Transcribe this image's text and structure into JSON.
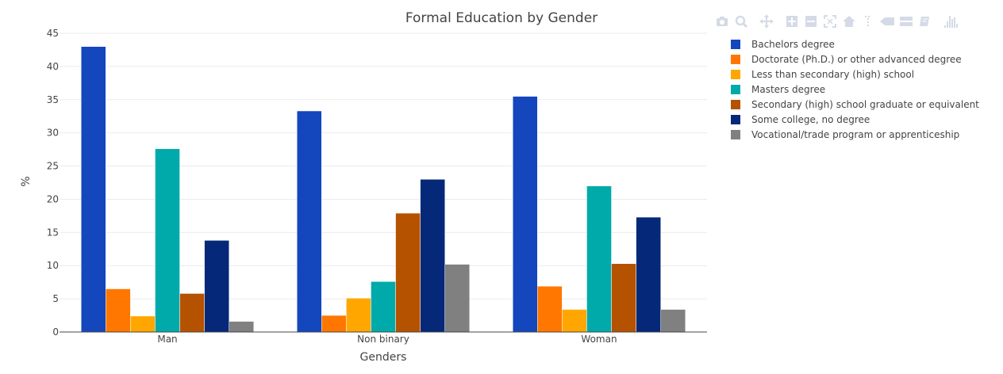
{
  "chart_data": {
    "type": "bar",
    "title": "Formal Education by Gender",
    "xlabel": "Genders",
    "ylabel": "%",
    "categories": [
      "Man",
      "Non binary",
      "Woman"
    ],
    "ylim": [
      0,
      45
    ],
    "yticks": [
      0,
      5,
      10,
      15,
      20,
      25,
      30,
      35,
      40,
      45
    ],
    "grid": true,
    "legend_position": "right",
    "series": [
      {
        "name": "Bachelors degree",
        "color": "#1446bd",
        "values": [
          43.0,
          33.3,
          35.5
        ]
      },
      {
        "name": "Doctorate (Ph.D.) or other advanced degree",
        "color": "#ff7700",
        "values": [
          6.5,
          2.5,
          6.9
        ]
      },
      {
        "name": "Less than secondary (high) school",
        "color": "#ffa600",
        "values": [
          2.4,
          5.1,
          3.4
        ]
      },
      {
        "name": "Masters degree",
        "color": "#00aaaa",
        "values": [
          27.6,
          7.6,
          22.0
        ]
      },
      {
        "name": "Secondary (high) school graduate or equivalent",
        "color": "#b55200",
        "values": [
          5.8,
          17.9,
          10.3
        ]
      },
      {
        "name": "Some college, no degree",
        "color": "#062878",
        "values": [
          13.8,
          23.0,
          17.3
        ]
      },
      {
        "name": "Vocational/trade program or apprenticeship",
        "color": "#808080",
        "values": [
          1.6,
          10.2,
          3.4
        ]
      }
    ]
  },
  "modebar": {
    "icons": [
      "camera-icon",
      "zoom-icon",
      "pan-icon",
      "zoom-in-icon",
      "zoom-out-icon",
      "autoscale-icon",
      "reset-axes-icon",
      "spike-lines-icon",
      "hover-closest-icon",
      "hover-compare-icon",
      "toggle-hover-icon",
      "plotly-logo-icon"
    ],
    "color": "#d4dbe6"
  }
}
